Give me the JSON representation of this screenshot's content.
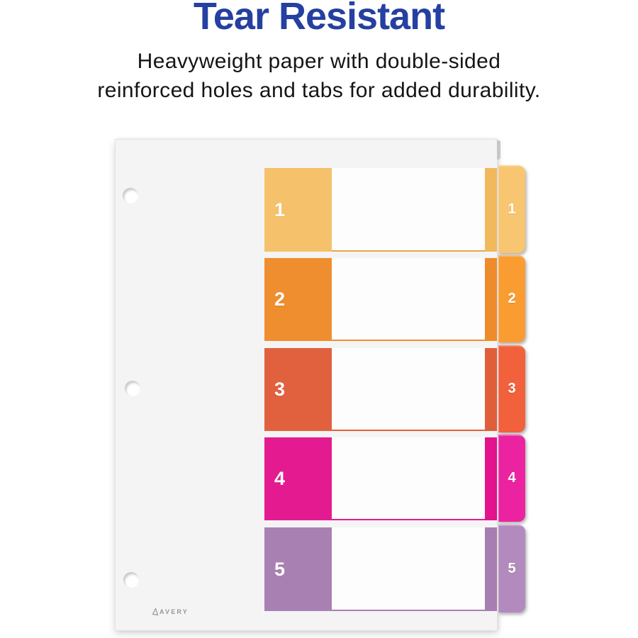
{
  "header": {
    "title": "Tear Resistant",
    "title_color": "#2540A0",
    "subtitle_line1": "Heavyweight paper with double-sided",
    "subtitle_line2": "reinforced holes and tabs for added durability."
  },
  "product": {
    "brand": {
      "label": "AVERY",
      "logo_icon": "avery-triangle-icon",
      "color": "#97979B"
    },
    "hole_count": 3,
    "number_text_color": "#FFFFFF",
    "tabs": [
      {
        "number": "1",
        "block_color": "#F5C16A",
        "strip_color": "#F2B95C",
        "tab_color": "#F8C670",
        "underline_color": "#E9A83E"
      },
      {
        "number": "2",
        "block_color": "#EF8E2E",
        "strip_color": "#EE8C2B",
        "tab_color": "#F99D33",
        "underline_color": "#EF8E2E"
      },
      {
        "number": "3",
        "block_color": "#E1613E",
        "strip_color": "#DF5F3B",
        "tab_color": "#F0613C",
        "underline_color": "#E1613E"
      },
      {
        "number": "4",
        "block_color": "#E41B90",
        "strip_color": "#E3138C",
        "tab_color": "#EC23A0",
        "underline_color": "#E41B90"
      },
      {
        "number": "5",
        "block_color": "#A980B2",
        "strip_color": "#A77EB0",
        "tab_color": "#B38ABD",
        "underline_color": "#A980B2"
      }
    ]
  }
}
